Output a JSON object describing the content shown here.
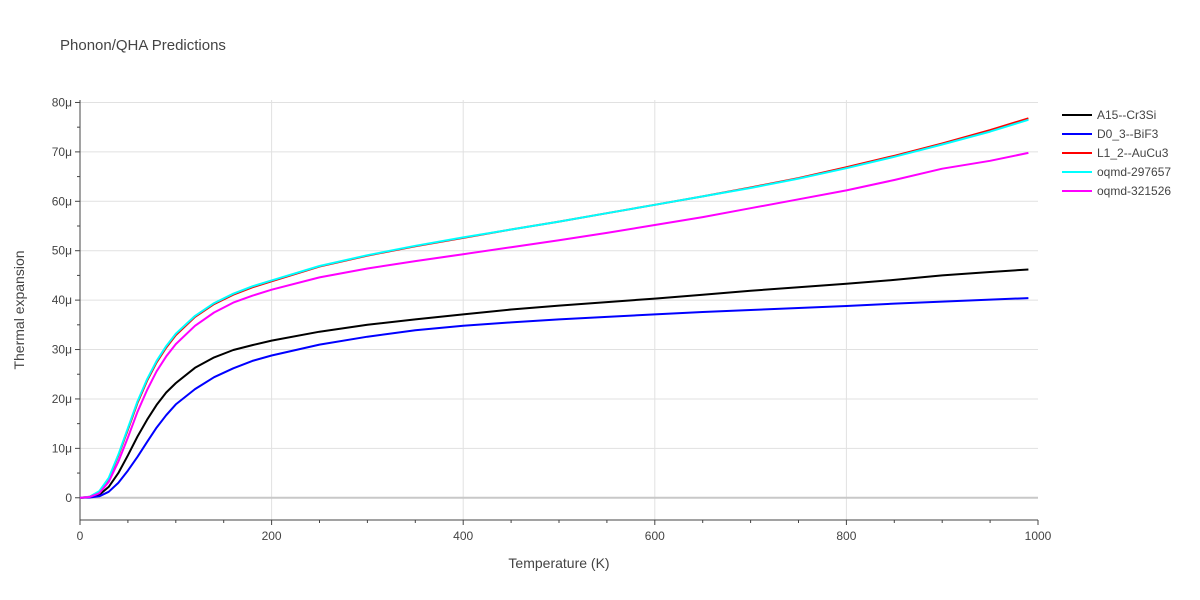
{
  "chart_data": {
    "type": "line",
    "title": "Phonon/QHA Predictions",
    "xlabel": "Temperature (K)",
    "ylabel": "Thermal expansion",
    "xlim": [
      0,
      1000
    ],
    "ylim": [
      -4.5,
      80.5
    ],
    "x_ticks": [
      0,
      200,
      400,
      600,
      800,
      1000
    ],
    "x_tick_labels": [
      "0",
      "200",
      "400",
      "600",
      "800",
      "1000"
    ],
    "y_ticks": [
      0,
      10,
      20,
      30,
      40,
      50,
      60,
      70,
      80
    ],
    "y_tick_labels": [
      "0",
      "10μ",
      "20μ",
      "30μ",
      "40μ",
      "50μ",
      "60μ",
      "70μ",
      "80μ"
    ],
    "y_unit": "μ (×10⁻⁶)",
    "grid": true,
    "legend_position": "top-right",
    "x": [
      0,
      10,
      20,
      30,
      40,
      50,
      60,
      70,
      80,
      90,
      100,
      120,
      140,
      160,
      180,
      200,
      250,
      300,
      350,
      400,
      450,
      500,
      550,
      600,
      650,
      700,
      750,
      800,
      850,
      900,
      950,
      990
    ],
    "series": [
      {
        "name": "A15--Cr3Si",
        "color": "#000000",
        "values": [
          0,
          0.1,
          0.6,
          2.2,
          5.0,
          8.6,
          12.4,
          15.8,
          18.8,
          21.3,
          23.2,
          26.3,
          28.4,
          29.9,
          30.9,
          31.8,
          33.6,
          35.0,
          36.1,
          37.1,
          38.1,
          38.9,
          39.6,
          40.3,
          41.1,
          41.9,
          42.6,
          43.3,
          44.1,
          45.0,
          45.7,
          46.2
        ]
      },
      {
        "name": "D0_3--BiF3",
        "color": "#0000ff",
        "values": [
          0,
          0.05,
          0.3,
          1.2,
          3.0,
          5.5,
          8.3,
          11.3,
          14.2,
          16.7,
          18.9,
          22.0,
          24.4,
          26.2,
          27.7,
          28.8,
          31.0,
          32.6,
          33.9,
          34.8,
          35.5,
          36.1,
          36.6,
          37.1,
          37.6,
          38.0,
          38.4,
          38.8,
          39.3,
          39.7,
          40.1,
          40.4
        ]
      },
      {
        "name": "L1_2--AuCu3",
        "color": "#ff0000",
        "values": [
          0,
          0.2,
          1.2,
          3.8,
          8.5,
          13.8,
          19.2,
          23.7,
          27.4,
          30.4,
          32.9,
          36.6,
          39.2,
          41.1,
          42.6,
          43.8,
          46.8,
          49.0,
          50.9,
          52.6,
          54.3,
          55.9,
          57.6,
          59.3,
          61.0,
          62.8,
          64.7,
          66.9,
          69.2,
          71.7,
          74.4,
          76.8
        ]
      },
      {
        "name": "oqmd-297657",
        "color": "#00ffff",
        "values": [
          0,
          0.2,
          1.3,
          4.0,
          8.7,
          14.1,
          19.5,
          24.0,
          27.7,
          30.7,
          33.2,
          36.8,
          39.4,
          41.3,
          42.8,
          44.0,
          46.9,
          49.1,
          51.0,
          52.7,
          54.3,
          55.9,
          57.6,
          59.3,
          61.0,
          62.7,
          64.6,
          66.7,
          69.0,
          71.5,
          74.1,
          76.5
        ]
      },
      {
        "name": "oqmd-321526",
        "color": "#ff00ff",
        "values": [
          0,
          0.15,
          0.9,
          3.2,
          7.3,
          12.2,
          17.4,
          21.8,
          25.6,
          28.6,
          31.1,
          34.8,
          37.5,
          39.5,
          40.9,
          42.1,
          44.6,
          46.4,
          47.9,
          49.3,
          50.7,
          52.1,
          53.6,
          55.2,
          56.8,
          58.6,
          60.4,
          62.2,
          64.3,
          66.6,
          68.2,
          69.8
        ]
      }
    ]
  }
}
